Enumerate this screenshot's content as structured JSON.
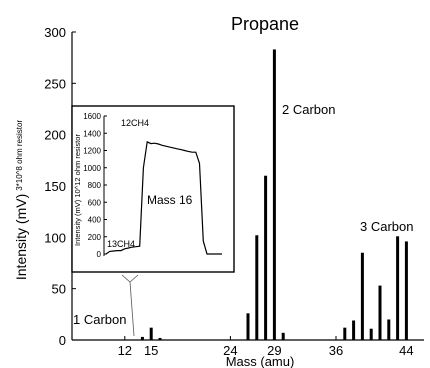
{
  "chart_data": [
    {
      "type": "bar",
      "title": "Propane",
      "xlabel": "Mass (amu)",
      "ylabel": "Intensity (mV)",
      "ylabel_sub": "3*10^8 ohm resistor",
      "xlim": [
        6,
        46
      ],
      "ylim": [
        0,
        300
      ],
      "xticks": [
        12,
        15,
        24,
        29,
        36,
        44
      ],
      "yticks": [
        0,
        50,
        100,
        150,
        200,
        250,
        300
      ],
      "x": [
        14,
        15,
        16,
        26,
        27,
        28,
        29,
        30,
        37,
        38,
        39,
        40,
        41,
        42,
        43,
        44
      ],
      "values": [
        3,
        12,
        2,
        26,
        102,
        160,
        283,
        7,
        12,
        19,
        85,
        11,
        53,
        20,
        101,
        96
      ],
      "annotations": [
        "1 Carbon",
        "2 Carbon",
        "3 Carbon"
      ]
    },
    {
      "type": "line",
      "title": "Mass 16",
      "ylabel": "Intensity (mV) 10^12 ohm resistor",
      "ylim": [
        0,
        1600
      ],
      "yticks": [
        0,
        200,
        400,
        600,
        800,
        1000,
        1200,
        1400,
        1600
      ],
      "values": [
        0,
        30,
        35,
        40,
        40,
        60,
        70,
        80,
        85,
        90,
        1000,
        1300,
        1280,
        1285,
        1275,
        1260,
        1250,
        1240,
        1230,
        1220,
        1210,
        1200,
        1190,
        1180,
        1180,
        1050,
        150,
        0,
        0,
        0,
        0,
        0
      ],
      "annotations": [
        "12CH4",
        "13CH4"
      ]
    }
  ]
}
